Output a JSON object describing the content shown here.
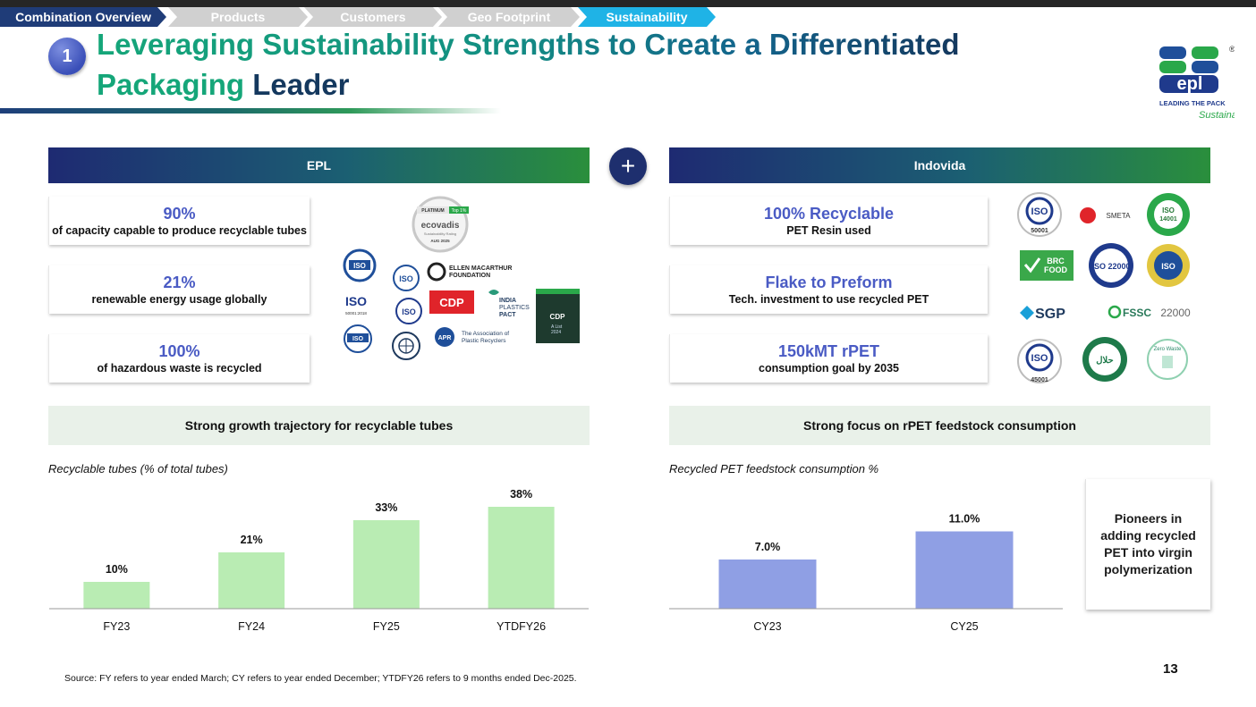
{
  "nav": {
    "tabs": [
      {
        "label": "Combination Overview"
      },
      {
        "label": "Products"
      },
      {
        "label": "Customers"
      },
      {
        "label": "Geo Footprint"
      },
      {
        "label": "Sustainability"
      }
    ]
  },
  "header": {
    "step_number": "1",
    "title_part1": "Leveraging Sustainability Strengths to Create a Differentiated",
    "title_part2_green": "Packaging",
    "title_part2_navy": "Leader"
  },
  "logo": {
    "brand": "epl",
    "tagline": "LEADING THE PACK",
    "script": "Sustainably",
    "registered": "®"
  },
  "epl": {
    "heading": "EPL",
    "stats": [
      {
        "value": "90%",
        "desc": "of capacity capable to produce recyclable tubes"
      },
      {
        "value": "21%",
        "desc": "renewable energy usage globally"
      },
      {
        "value": "100%",
        "desc": "of hazardous waste is recycled"
      }
    ],
    "badges": {
      "ecovadis_platinum": "PLATINUM",
      "ecovadis_top": "Top 1%",
      "ecovadis_name": "ecovadis",
      "ecovadis_sub": "Sustainability Rating",
      "ecovadis_date": "AUG 2025",
      "ellen_line1": "ELLEN MACARTHUR",
      "ellen_line2": "FOUNDATION",
      "cdp": "CDP",
      "india1": "INDIA",
      "india2": "PLASTICS",
      "india3": "PACT",
      "apr_short": "APR",
      "apr_line1": "The Association of",
      "apr_line2": "Plastic Recyclers",
      "iso": "ISO",
      "iso_code": "50001:2018",
      "cdp_alist": "A List",
      "cdp_year": "2024"
    }
  },
  "indovida": {
    "heading": "Indovida",
    "stats": [
      {
        "value": "100% Recyclable",
        "desc": "PET Resin used"
      },
      {
        "value": "Flake to Preform",
        "desc": "Tech. investment to use recycled PET"
      },
      {
        "value": "150kMT rPET",
        "desc": "consumption goal by 2035"
      }
    ],
    "badges": {
      "iso50001": "50001",
      "smeta": "SMETA",
      "iso14001": "14001",
      "brc1": "BRC",
      "brc2": "FOOD",
      "iso22000": "ISO 22000",
      "sgp": "SGP",
      "fssc": "FSSC",
      "fssc_num": "22000",
      "iso45001": "45001",
      "halal": "حلال",
      "zero": "Zero Waste",
      "iso": "ISO"
    }
  },
  "left_chart_section": {
    "banner": "Strong growth trajectory for recyclable tubes",
    "caption": "Recyclable tubes (% of total tubes)"
  },
  "right_chart_section": {
    "banner": "Strong focus on rPET feedstock consumption",
    "caption": "Recycled PET feedstock consumption %",
    "callout": "Pioneers in adding recycled PET into virgin polymerization"
  },
  "chart_data": [
    {
      "type": "bar",
      "title": "Recyclable tubes (% of total tubes)",
      "categories": [
        "FY23",
        "FY24",
        "FY25",
        "YTDFY26"
      ],
      "values": [
        10,
        21,
        33,
        38
      ],
      "labels": [
        "10%",
        "21%",
        "33%",
        "38%"
      ],
      "ylim": [
        0,
        40
      ],
      "color": "#b9ecb3"
    },
    {
      "type": "bar",
      "title": "Recycled PET feedstock consumption %",
      "categories": [
        "CY23",
        "CY25"
      ],
      "values": [
        7.0,
        11.0
      ],
      "labels": [
        "7.0%",
        "11.0%"
      ],
      "ylim": [
        0,
        14.5
      ],
      "color": "#8f9fe4"
    }
  ],
  "footer": {
    "source": "Source: FY refers to year ended March; CY refers to year ended December; YTDFY26 refers to 9 months ended Dec-2025.",
    "page_number": "13"
  },
  "colors": {
    "navy": "#1f3c78",
    "teal_tab": "#1fb3e6",
    "title_green": "#15a679",
    "stat_blue": "#4a5bc4",
    "bar_green": "#b9ecb3",
    "bar_blue": "#8f9fe4"
  }
}
